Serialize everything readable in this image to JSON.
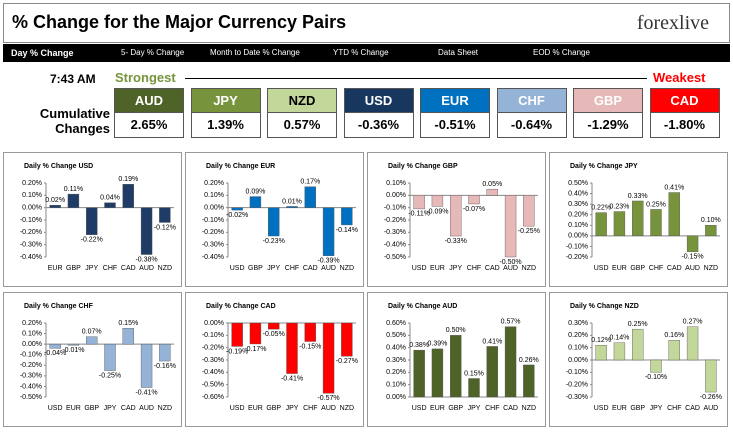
{
  "header": {
    "title": "% Change for the Major Currency Pairs",
    "logo": "forexlive"
  },
  "nav": [
    "Day % Change",
    "5- Day % Change",
    "Month to Date % Change",
    "YTD % Change",
    "Data Sheet",
    "EOD % Change"
  ],
  "summary": {
    "time": "7:43 AM",
    "strongest": "Strongest",
    "weakest": "Weakest",
    "label": "Cumulative Changes",
    "currencies": [
      {
        "name": "AUD",
        "value": "2.65%",
        "color": "#4f6228",
        "text_color": "#ffffff"
      },
      {
        "name": "JPY",
        "value": "1.39%",
        "color": "#77933c",
        "text_color": "#ffffff"
      },
      {
        "name": "NZD",
        "value": "0.57%",
        "color": "#c4d79b",
        "text_color": "#000000"
      },
      {
        "name": "USD",
        "value": "-0.36%",
        "color": "#17375e",
        "text_color": "#ffffff"
      },
      {
        "name": "EUR",
        "value": "-0.51%",
        "color": "#0070c0",
        "text_color": "#ffffff"
      },
      {
        "name": "CHF",
        "value": "-0.64%",
        "color": "#95b3d7",
        "text_color": "#ffffff"
      },
      {
        "name": "GBP",
        "value": "-1.29%",
        "color": "#e6b8b7",
        "text_color": "#ffffff"
      },
      {
        "name": "CAD",
        "value": "-1.80%",
        "color": "#ff0000",
        "text_color": "#ffffff"
      }
    ]
  },
  "chart_data": [
    {
      "type": "bar",
      "title": "Daily % Change USD",
      "color": "#1f3c66",
      "categories": [
        "EUR",
        "GBP",
        "JPY",
        "CHF",
        "CAD",
        "AUD",
        "NZD"
      ],
      "values": [
        0.02,
        0.11,
        -0.22,
        0.04,
        0.19,
        -0.38,
        -0.12
      ],
      "value_labels": [
        "0.02%",
        "0.11%",
        "-0.22%",
        "0.04%",
        "0.19%",
        "-0.38%",
        "-0.12%"
      ],
      "ylim": [
        -0.4,
        0.2
      ],
      "yticks": [
        {
          "value": -0.4,
          "label": "-0.40%"
        },
        {
          "value": -0.3,
          "label": "-0.30%"
        },
        {
          "value": -0.2,
          "label": "-0.20%"
        },
        {
          "value": -0.1,
          "label": "-0.10%"
        },
        {
          "value": 0,
          "label": "0.00%"
        },
        {
          "value": 0.1,
          "label": "0.10%"
        },
        {
          "value": 0.2,
          "label": "0.20%"
        }
      ]
    },
    {
      "type": "bar",
      "title": "Daily % Change EUR",
      "color": "#0070c0",
      "categories": [
        "USD",
        "GBP",
        "JPY",
        "CHF",
        "CAD",
        "AUD",
        "NZD"
      ],
      "values": [
        -0.02,
        0.09,
        -0.23,
        0.01,
        0.17,
        -0.39,
        -0.14
      ],
      "value_labels": [
        "-0.02%",
        "0.09%",
        "-0.23%",
        "0.01%",
        "0.17%",
        "-0.39%",
        "-0.14%"
      ],
      "ylim": [
        -0.4,
        0.2
      ],
      "yticks": [
        {
          "value": -0.4,
          "label": "-0.40%"
        },
        {
          "value": -0.3,
          "label": "-0.30%"
        },
        {
          "value": -0.2,
          "label": "-0.20%"
        },
        {
          "value": -0.1,
          "label": "-0.10%"
        },
        {
          "value": 0,
          "label": "0.00%"
        },
        {
          "value": 0.1,
          "label": "0.10%"
        },
        {
          "value": 0.2,
          "label": "0.20%"
        }
      ]
    },
    {
      "type": "bar",
      "title": "Daily % Change GBP",
      "color": "#e6b8b7",
      "categories": [
        "USD",
        "EUR",
        "JPY",
        "CHF",
        "CAD",
        "AUD",
        "NZD"
      ],
      "values": [
        -0.11,
        -0.09,
        -0.33,
        -0.07,
        0.05,
        -0.5,
        -0.25
      ],
      "value_labels": [
        "-0.11%",
        "-0.09%",
        "-0.33%",
        "-0.07%",
        "0.05%",
        "-0.50%",
        "-0.25%"
      ],
      "ylim": [
        -0.5,
        0.1
      ],
      "yticks": [
        {
          "value": -0.5,
          "label": "-0.50%"
        },
        {
          "value": -0.4,
          "label": "-0.40%"
        },
        {
          "value": -0.3,
          "label": "-0.30%"
        },
        {
          "value": -0.2,
          "label": "-0.20%"
        },
        {
          "value": -0.1,
          "label": "-0.10%"
        },
        {
          "value": 0,
          "label": "0.00%"
        },
        {
          "value": 0.1,
          "label": "0.10%"
        }
      ]
    },
    {
      "type": "bar",
      "title": "Daily % Change JPY",
      "color": "#77933c",
      "categories": [
        "USD",
        "EUR",
        "GBP",
        "CHF",
        "CAD",
        "AUD",
        "NZD"
      ],
      "values": [
        0.22,
        0.23,
        0.33,
        0.25,
        0.41,
        -0.15,
        0.1
      ],
      "value_labels": [
        "0.22%",
        "0.23%",
        "0.33%",
        "0.25%",
        "0.41%",
        "-0.15%",
        "0.10%"
      ],
      "ylim": [
        -0.2,
        0.5
      ],
      "yticks": [
        {
          "value": -0.2,
          "label": "-0.20%"
        },
        {
          "value": -0.1,
          "label": "-0.10%"
        },
        {
          "value": 0,
          "label": "0.00%"
        },
        {
          "value": 0.1,
          "label": "0.10%"
        },
        {
          "value": 0.2,
          "label": "0.20%"
        },
        {
          "value": 0.3,
          "label": "0.30%"
        },
        {
          "value": 0.4,
          "label": "0.40%"
        },
        {
          "value": 0.5,
          "label": "0.50%"
        }
      ]
    },
    {
      "type": "bar",
      "title": "Daily % Change CHF",
      "color": "#95b3d7",
      "categories": [
        "USD",
        "EUR",
        "GBP",
        "JPY",
        "CAD",
        "AUD",
        "NZD"
      ],
      "values": [
        -0.04,
        -0.01,
        0.07,
        -0.25,
        0.15,
        -0.41,
        -0.16
      ],
      "value_labels": [
        "-0.04%",
        "-0.01%",
        "0.07%",
        "-0.25%",
        "0.15%",
        "-0.41%",
        "-0.16%"
      ],
      "ylim": [
        -0.5,
        0.2
      ],
      "yticks": [
        {
          "value": -0.5,
          "label": "-0.50%"
        },
        {
          "value": -0.4,
          "label": "-0.40%"
        },
        {
          "value": -0.3,
          "label": "-0.30%"
        },
        {
          "value": -0.2,
          "label": "-0.20%"
        },
        {
          "value": -0.1,
          "label": "-0.10%"
        },
        {
          "value": 0,
          "label": "0.00%"
        },
        {
          "value": 0.1,
          "label": "0.10%"
        },
        {
          "value": 0.2,
          "label": "0.20%"
        }
      ]
    },
    {
      "type": "bar",
      "title": "Daily % Change CAD",
      "color": "#ff0000",
      "categories": [
        "USD",
        "EUR",
        "GBP",
        "JPY",
        "CHF",
        "AUD",
        "NZD"
      ],
      "values": [
        -0.19,
        -0.17,
        -0.05,
        -0.41,
        -0.15,
        -0.57,
        -0.27
      ],
      "value_labels": [
        "-0.19%",
        "-0.17%",
        "-0.05%",
        "-0.41%",
        "-0.15%",
        "-0.57%",
        "-0.27%"
      ],
      "ylim": [
        -0.6,
        0
      ],
      "yticks": [
        {
          "value": -0.6,
          "label": "-0.60%"
        },
        {
          "value": -0.5,
          "label": "-0.50%"
        },
        {
          "value": -0.4,
          "label": "-0.40%"
        },
        {
          "value": -0.3,
          "label": "-0.30%"
        },
        {
          "value": -0.2,
          "label": "-0.20%"
        },
        {
          "value": -0.1,
          "label": "-0.10%"
        },
        {
          "value": 0,
          "label": "0.00%"
        }
      ]
    },
    {
      "type": "bar",
      "title": "Daily % Change AUD",
      "color": "#4f6228",
      "categories": [
        "USD",
        "EUR",
        "GBP",
        "JPY",
        "CHF",
        "CAD",
        "NZD"
      ],
      "values": [
        0.38,
        0.39,
        0.5,
        0.15,
        0.41,
        0.57,
        0.26
      ],
      "value_labels": [
        "0.38%",
        "0.39%",
        "0.50%",
        "0.15%",
        "0.41%",
        "0.57%",
        "0.26%"
      ],
      "ylim": [
        0,
        0.6
      ],
      "yticks": [
        {
          "value": 0,
          "label": "0.00%"
        },
        {
          "value": 0.1,
          "label": "0.10%"
        },
        {
          "value": 0.2,
          "label": "0.20%"
        },
        {
          "value": 0.3,
          "label": "0.30%"
        },
        {
          "value": 0.4,
          "label": "0.40%"
        },
        {
          "value": 0.5,
          "label": "0.50%"
        },
        {
          "value": 0.6,
          "label": "0.60%"
        }
      ]
    },
    {
      "type": "bar",
      "title": "Daily % Change NZD",
      "color": "#c4d79b",
      "categories": [
        "USD",
        "EUR",
        "GBP",
        "JPY",
        "CHF",
        "CAD",
        "AUD"
      ],
      "values": [
        0.12,
        0.14,
        0.25,
        -0.1,
        0.16,
        0.27,
        -0.26
      ],
      "value_labels": [
        "0.12%",
        "0.14%",
        "0.25%",
        "-0.10%",
        "0.16%",
        "0.27%",
        "-0.26%"
      ],
      "ylim": [
        -0.3,
        0.3
      ],
      "yticks": [
        {
          "value": -0.3,
          "label": "-0.30%"
        },
        {
          "value": -0.2,
          "label": "-0.20%"
        },
        {
          "value": -0.1,
          "label": "-0.10%"
        },
        {
          "value": 0,
          "label": "0.00%"
        },
        {
          "value": 0.1,
          "label": "0.10%"
        },
        {
          "value": 0.2,
          "label": "0.20%"
        },
        {
          "value": 0.3,
          "label": "0.30%"
        }
      ]
    }
  ]
}
